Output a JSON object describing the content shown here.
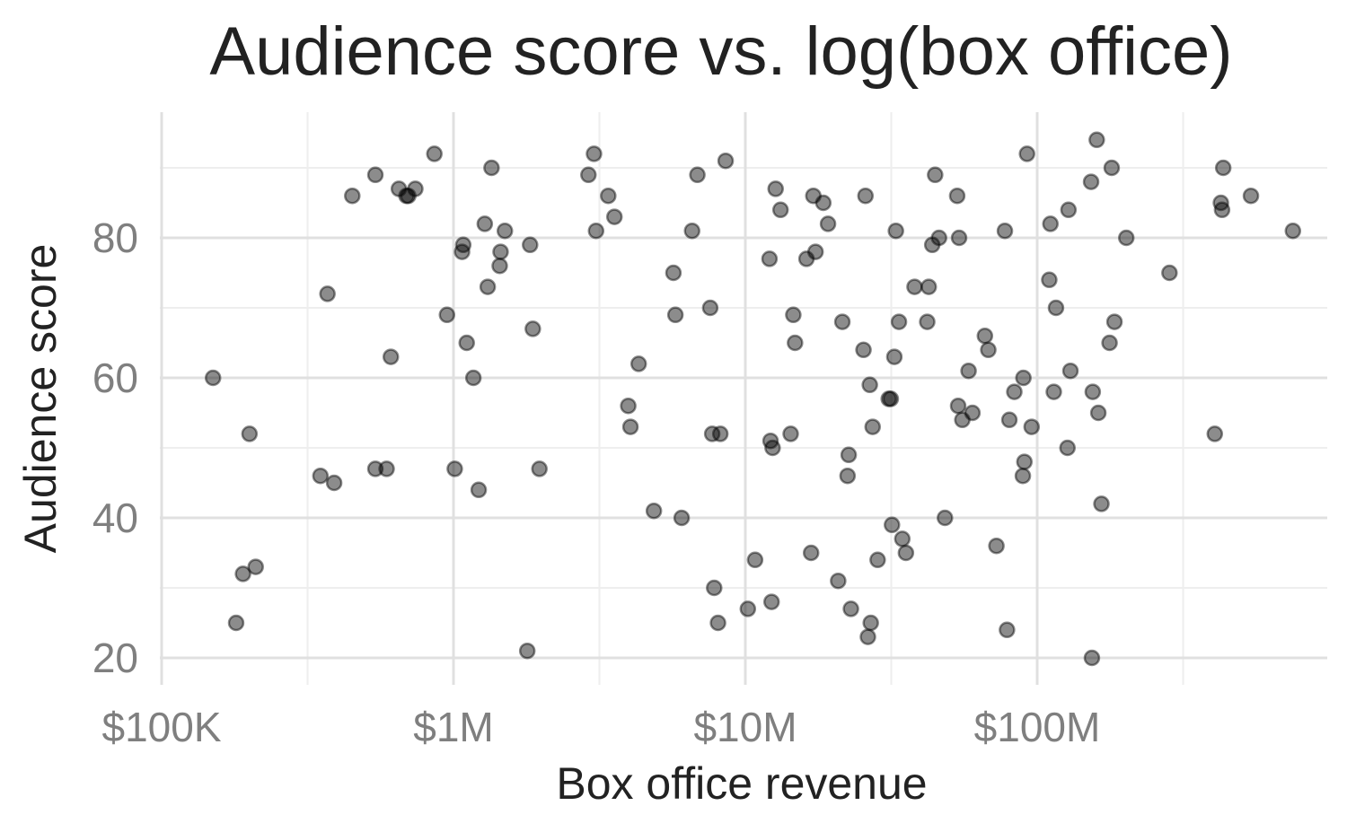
{
  "chart_data": {
    "type": "scatter",
    "title": "Audience score vs. log(box office)",
    "xlabel": "Box office revenue",
    "ylabel": "Audience score",
    "x_scale": "log10",
    "xlim": [
      100000,
      1000000000
    ],
    "ylim": [
      20,
      95
    ],
    "x_ticks": [
      {
        "value": 100000,
        "label": "$100K"
      },
      {
        "value": 1000000,
        "label": "$1M"
      },
      {
        "value": 10000000,
        "label": "$10M"
      },
      {
        "value": 100000000,
        "label": "$100M"
      }
    ],
    "y_ticks": [
      {
        "value": 20,
        "label": "20"
      },
      {
        "value": 40,
        "label": "40"
      },
      {
        "value": 60,
        "label": "60"
      },
      {
        "value": 80,
        "label": "80"
      }
    ],
    "grid": true,
    "point_color": "#000000",
    "point_opacity": 0.45,
    "points": [
      {
        "x": 150000,
        "y": 60
      },
      {
        "x": 200000,
        "y": 52
      },
      {
        "x": 190000,
        "y": 32
      },
      {
        "x": 210000,
        "y": 33
      },
      {
        "x": 180000,
        "y": 25
      },
      {
        "x": 350000,
        "y": 46
      },
      {
        "x": 390000,
        "y": 45
      },
      {
        "x": 370000,
        "y": 72
      },
      {
        "x": 450000,
        "y": 86
      },
      {
        "x": 540000,
        "y": 89
      },
      {
        "x": 540000,
        "y": 47
      },
      {
        "x": 590000,
        "y": 47
      },
      {
        "x": 610000,
        "y": 63
      },
      {
        "x": 650000,
        "y": 87
      },
      {
        "x": 690000,
        "y": 86
      },
      {
        "x": 700000,
        "y": 86
      },
      {
        "x": 740000,
        "y": 87
      },
      {
        "x": 860000,
        "y": 92
      },
      {
        "x": 950000,
        "y": 69
      },
      {
        "x": 1010000,
        "y": 47
      },
      {
        "x": 1070000,
        "y": 78
      },
      {
        "x": 1080000,
        "y": 79
      },
      {
        "x": 1110000,
        "y": 65
      },
      {
        "x": 1170000,
        "y": 60
      },
      {
        "x": 1220000,
        "y": 44
      },
      {
        "x": 1280000,
        "y": 82
      },
      {
        "x": 1310000,
        "y": 73
      },
      {
        "x": 1350000,
        "y": 90
      },
      {
        "x": 1440000,
        "y": 76
      },
      {
        "x": 1450000,
        "y": 78
      },
      {
        "x": 1500000,
        "y": 81
      },
      {
        "x": 1790000,
        "y": 21
      },
      {
        "x": 1830000,
        "y": 79
      },
      {
        "x": 1870000,
        "y": 67
      },
      {
        "x": 1970000,
        "y": 47
      },
      {
        "x": 2900000,
        "y": 89
      },
      {
        "x": 3030000,
        "y": 92
      },
      {
        "x": 3080000,
        "y": 81
      },
      {
        "x": 3390000,
        "y": 86
      },
      {
        "x": 3560000,
        "y": 83
      },
      {
        "x": 3970000,
        "y": 56
      },
      {
        "x": 4040000,
        "y": 53
      },
      {
        "x": 4310000,
        "y": 62
      },
      {
        "x": 4860000,
        "y": 41
      },
      {
        "x": 5670000,
        "y": 75
      },
      {
        "x": 5760000,
        "y": 69
      },
      {
        "x": 6050000,
        "y": 40
      },
      {
        "x": 6570000,
        "y": 81
      },
      {
        "x": 6850000,
        "y": 89
      },
      {
        "x": 7580000,
        "y": 70
      },
      {
        "x": 7700000,
        "y": 52
      },
      {
        "x": 7820000,
        "y": 30
      },
      {
        "x": 8060000,
        "y": 25
      },
      {
        "x": 8210000,
        "y": 52
      },
      {
        "x": 8560000,
        "y": 91
      },
      {
        "x": 10200000,
        "y": 27
      },
      {
        "x": 10800000,
        "y": 34
      },
      {
        "x": 12100000,
        "y": 77
      },
      {
        "x": 12200000,
        "y": 51
      },
      {
        "x": 12300000,
        "y": 28
      },
      {
        "x": 12400000,
        "y": 50
      },
      {
        "x": 12700000,
        "y": 87
      },
      {
        "x": 13200000,
        "y": 84
      },
      {
        "x": 14300000,
        "y": 52
      },
      {
        "x": 14600000,
        "y": 69
      },
      {
        "x": 14800000,
        "y": 65
      },
      {
        "x": 16200000,
        "y": 77
      },
      {
        "x": 16800000,
        "y": 35
      },
      {
        "x": 17100000,
        "y": 86
      },
      {
        "x": 17400000,
        "y": 78
      },
      {
        "x": 18500000,
        "y": 85
      },
      {
        "x": 19200000,
        "y": 82
      },
      {
        "x": 20800000,
        "y": 31
      },
      {
        "x": 21500000,
        "y": 68
      },
      {
        "x": 22400000,
        "y": 46
      },
      {
        "x": 22600000,
        "y": 49
      },
      {
        "x": 23000000,
        "y": 27
      },
      {
        "x": 25400000,
        "y": 64
      },
      {
        "x": 25800000,
        "y": 86
      },
      {
        "x": 26300000,
        "y": 23
      },
      {
        "x": 26700000,
        "y": 59
      },
      {
        "x": 26900000,
        "y": 25
      },
      {
        "x": 27300000,
        "y": 53
      },
      {
        "x": 28400000,
        "y": 34
      },
      {
        "x": 31000000,
        "y": 57
      },
      {
        "x": 31500000,
        "y": 57
      },
      {
        "x": 31800000,
        "y": 39
      },
      {
        "x": 32400000,
        "y": 63
      },
      {
        "x": 32800000,
        "y": 81
      },
      {
        "x": 33600000,
        "y": 68
      },
      {
        "x": 34500000,
        "y": 37
      },
      {
        "x": 35500000,
        "y": 35
      },
      {
        "x": 38000000,
        "y": 73
      },
      {
        "x": 42000000,
        "y": 68
      },
      {
        "x": 42500000,
        "y": 73
      },
      {
        "x": 43700000,
        "y": 79
      },
      {
        "x": 44700000,
        "y": 89
      },
      {
        "x": 46100000,
        "y": 80
      },
      {
        "x": 48300000,
        "y": 40
      },
      {
        "x": 53200000,
        "y": 86
      },
      {
        "x": 53600000,
        "y": 56
      },
      {
        "x": 54000000,
        "y": 80
      },
      {
        "x": 55400000,
        "y": 54
      },
      {
        "x": 58200000,
        "y": 61
      },
      {
        "x": 60000000,
        "y": 55
      },
      {
        "x": 66200000,
        "y": 66
      },
      {
        "x": 68000000,
        "y": 64
      },
      {
        "x": 72500000,
        "y": 36
      },
      {
        "x": 77500000,
        "y": 81
      },
      {
        "x": 78800000,
        "y": 24
      },
      {
        "x": 80300000,
        "y": 54
      },
      {
        "x": 83500000,
        "y": 58
      },
      {
        "x": 89300000,
        "y": 46
      },
      {
        "x": 89700000,
        "y": 60
      },
      {
        "x": 90400000,
        "y": 48
      },
      {
        "x": 92300000,
        "y": 92
      },
      {
        "x": 95700000,
        "y": 53
      },
      {
        "x": 110000000,
        "y": 74
      },
      {
        "x": 111000000,
        "y": 82
      },
      {
        "x": 114000000,
        "y": 58
      },
      {
        "x": 116000000,
        "y": 70
      },
      {
        "x": 127000000,
        "y": 50
      },
      {
        "x": 128000000,
        "y": 84
      },
      {
        "x": 130000000,
        "y": 61
      },
      {
        "x": 153000000,
        "y": 88
      },
      {
        "x": 154000000,
        "y": 20
      },
      {
        "x": 155000000,
        "y": 58
      },
      {
        "x": 160000000,
        "y": 94
      },
      {
        "x": 162000000,
        "y": 55
      },
      {
        "x": 166000000,
        "y": 42
      },
      {
        "x": 177000000,
        "y": 65
      },
      {
        "x": 180000000,
        "y": 90
      },
      {
        "x": 184000000,
        "y": 68
      },
      {
        "x": 202000000,
        "y": 80
      },
      {
        "x": 284000000,
        "y": 75
      },
      {
        "x": 406000000,
        "y": 52
      },
      {
        "x": 426000000,
        "y": 85
      },
      {
        "x": 430000000,
        "y": 84
      },
      {
        "x": 434000000,
        "y": 90
      },
      {
        "x": 540000000,
        "y": 86
      },
      {
        "x": 752000000,
        "y": 81
      }
    ]
  }
}
